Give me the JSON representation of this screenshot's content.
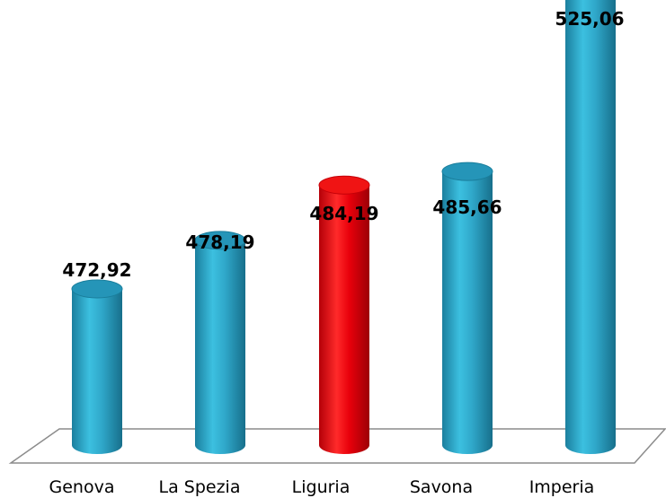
{
  "chart_data": {
    "type": "bar",
    "categories": [
      "Genova",
      "La Spezia",
      "Liguria",
      "Savona",
      "Imperia"
    ],
    "values": [
      472.92,
      478.19,
      484.19,
      485.66,
      525.06
    ],
    "value_labels": [
      "472,92",
      "478,19",
      "484,19",
      "485,66",
      "525,06"
    ],
    "highlight": "Liguria",
    "colors": {
      "default": "#2fa7c9",
      "highlight": "#e8000b"
    },
    "ylim": [
      445,
      530
    ],
    "grid": false,
    "legend": "none",
    "style": "3d-cylinder"
  }
}
